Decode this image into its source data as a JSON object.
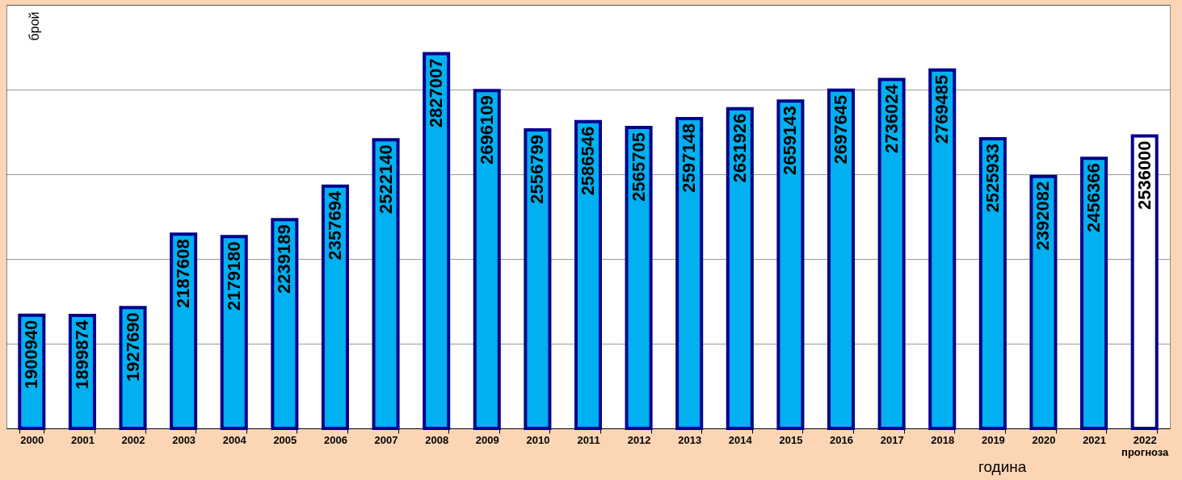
{
  "chart_data": {
    "type": "bar",
    "xlabel": "година",
    "ylabel": "брой",
    "categories": [
      "2000",
      "2001",
      "2002",
      "2003",
      "2004",
      "2005",
      "2006",
      "2007",
      "2008",
      "2009",
      "2010",
      "2011",
      "2012",
      "2013",
      "2014",
      "2015",
      "2016",
      "2017",
      "2018",
      "2019",
      "2020",
      "2021",
      "2022 прогноза"
    ],
    "values": [
      1900940,
      1899874,
      1927690,
      2187608,
      2179180,
      2239189,
      2357694,
      2522140,
      2827007,
      2696109,
      2556799,
      2586546,
      2565705,
      2597148,
      2631926,
      2659143,
      2697645,
      2736024,
      2769485,
      2525933,
      2392082,
      2456366,
      2536000
    ],
    "colors": [
      "#00b0f0",
      "#00b0f0",
      "#00b0f0",
      "#00b0f0",
      "#00b0f0",
      "#00b0f0",
      "#00b0f0",
      "#00b0f0",
      "#00b0f0",
      "#00b0f0",
      "#00b0f0",
      "#00b0f0",
      "#00b0f0",
      "#00b0f0",
      "#00b0f0",
      "#00b0f0",
      "#00b0f0",
      "#00b0f0",
      "#00b0f0",
      "#00b0f0",
      "#00b0f0",
      "#00b0f0",
      "#ffffff"
    ],
    "ylim": [
      1500000,
      3000000
    ],
    "yticks": [
      {
        "value": 1500000,
        "label": null
      },
      {
        "value": 1800000,
        "label": null
      },
      {
        "value": 2100000,
        "label": null
      },
      {
        "value": 2400000,
        "label": null
      },
      {
        "value": 2700000,
        "label": null
      },
      {
        "value": 3000000,
        "label": null
      }
    ],
    "tick_labels": "x",
    "grid": "y",
    "data_labels": true
  }
}
